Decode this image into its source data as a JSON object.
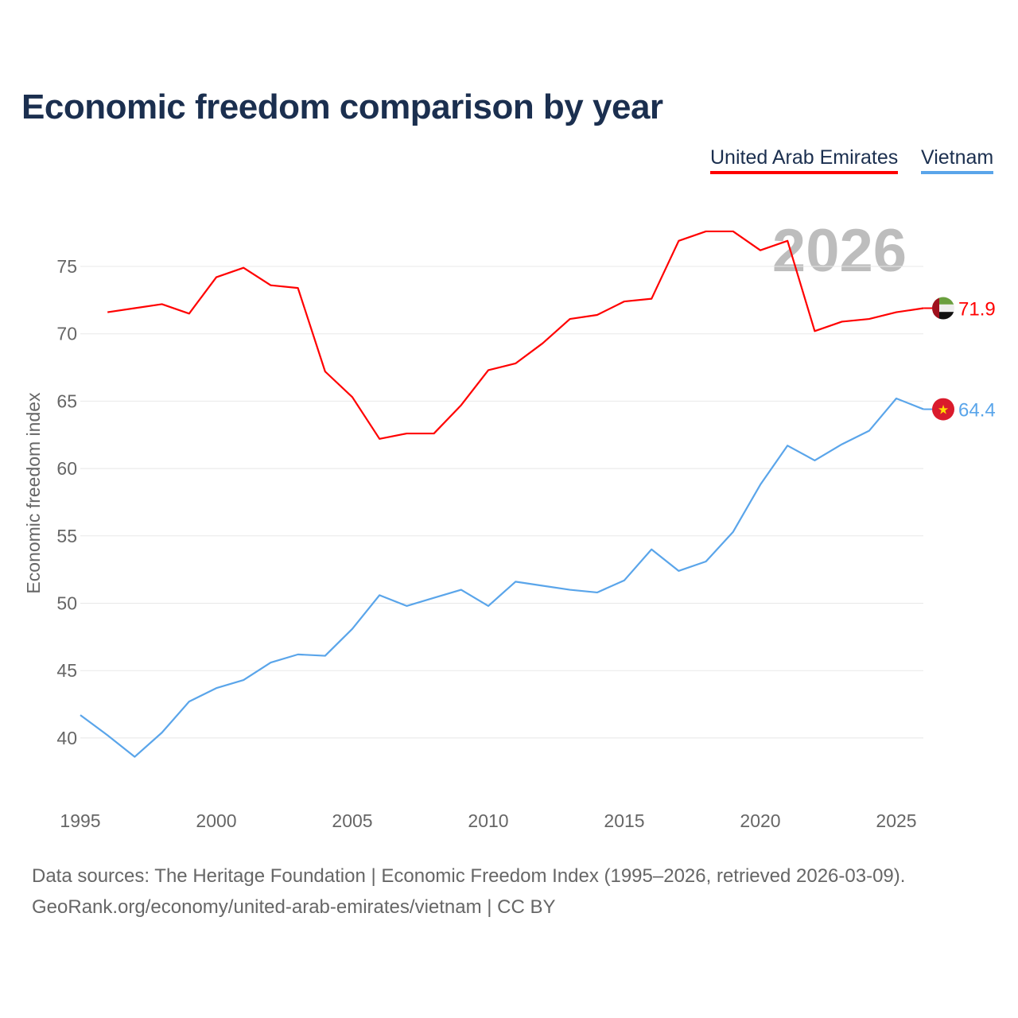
{
  "chart_data": {
    "type": "line",
    "title": "Economic freedom comparison by year",
    "xlabel": "",
    "ylabel": "Economic freedom index",
    "xlim": [
      1995,
      2026
    ],
    "ylim": [
      35,
      80
    ],
    "x_ticks": [
      1995,
      2000,
      2005,
      2010,
      2015,
      2020,
      2025
    ],
    "y_ticks": [
      40,
      45,
      50,
      55,
      60,
      65,
      70,
      75
    ],
    "grid": true,
    "legend_placement": "top-right",
    "year_watermark": "2026",
    "series": [
      {
        "name": "United Arab Emirates",
        "color": "#ff0000",
        "flag": "uae-flag",
        "end_label": "71.9",
        "x": [
          1996,
          1997,
          1998,
          1999,
          2000,
          2001,
          2002,
          2003,
          2004,
          2005,
          2006,
          2007,
          2008,
          2009,
          2010,
          2011,
          2012,
          2013,
          2014,
          2015,
          2016,
          2017,
          2018,
          2019,
          2020,
          2021,
          2022,
          2023,
          2024,
          2025,
          2026
        ],
        "values": [
          71.6,
          71.9,
          72.2,
          71.5,
          74.2,
          74.9,
          73.6,
          73.4,
          67.2,
          65.3,
          62.2,
          62.6,
          62.6,
          64.7,
          67.3,
          67.8,
          69.3,
          71.1,
          71.4,
          72.4,
          72.6,
          76.9,
          77.6,
          77.6,
          76.2,
          76.9,
          70.2,
          70.9,
          71.1,
          71.6,
          71.9
        ]
      },
      {
        "name": "Vietnam",
        "color": "#5aa5ea",
        "flag": "vietnam-flag",
        "end_label": "64.4",
        "x": [
          1995,
          1996,
          1997,
          1998,
          1999,
          2000,
          2001,
          2002,
          2003,
          2004,
          2005,
          2006,
          2007,
          2008,
          2009,
          2010,
          2011,
          2012,
          2013,
          2014,
          2015,
          2016,
          2017,
          2018,
          2019,
          2020,
          2021,
          2022,
          2023,
          2024,
          2025,
          2026
        ],
        "values": [
          41.7,
          40.2,
          38.6,
          40.4,
          42.7,
          43.7,
          44.3,
          45.6,
          46.2,
          46.1,
          48.1,
          50.6,
          49.8,
          50.4,
          51.0,
          49.8,
          51.6,
          51.3,
          51.0,
          50.8,
          51.7,
          54.0,
          52.4,
          53.1,
          55.3,
          58.8,
          61.7,
          60.6,
          61.8,
          62.8,
          65.2,
          64.4
        ]
      }
    ]
  },
  "footer": {
    "line1": "Data sources: The Heritage Foundation | Economic Freedom Index (1995–2026, retrieved 2026-03-09).",
    "line2": "GeoRank.org/economy/united-arab-emirates/vietnam | CC BY"
  }
}
